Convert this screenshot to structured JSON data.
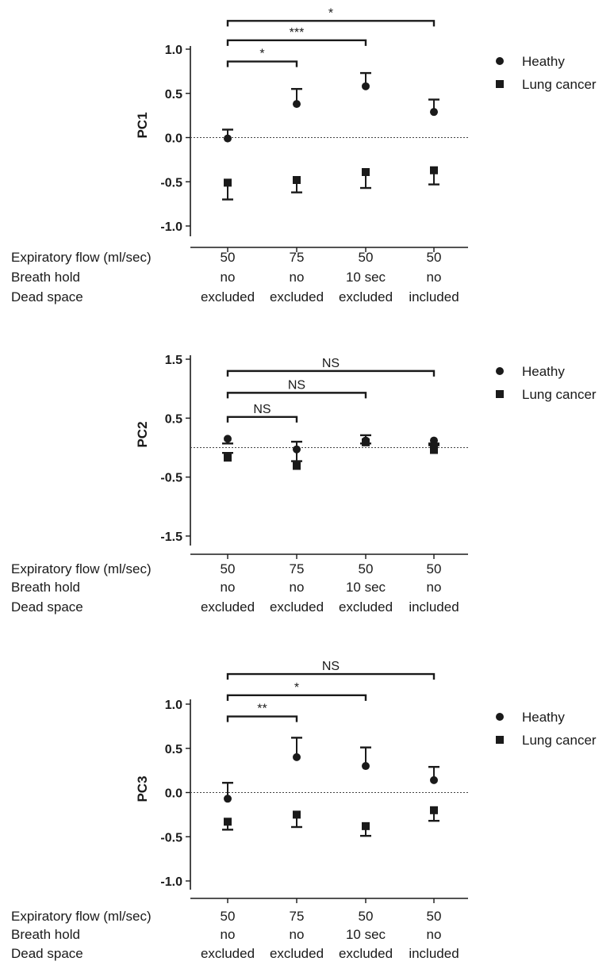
{
  "chart_data": [
    {
      "type": "scatter",
      "ylabel": "PC1",
      "ylim": [
        -1.0,
        1.0
      ],
      "yticks": [
        "1.0",
        "0.5",
        "0.0",
        "-0.5",
        "-1.0"
      ],
      "ytick_values": [
        1.0,
        0.5,
        0.0,
        -0.5,
        -1.0
      ],
      "zero_line": true,
      "grid": false,
      "legend_placement": "right",
      "row_labels": [
        "Expiratory flow (ml/sec)",
        "Breath hold",
        "Dead space"
      ],
      "conditions": [
        {
          "flow": "50",
          "hold": "no",
          "dead": "excluded"
        },
        {
          "flow": "75",
          "hold": "no",
          "dead": "excluded"
        },
        {
          "flow": "50",
          "hold": "10 sec",
          "dead": "excluded"
        },
        {
          "flow": "50",
          "hold": "no",
          "dead": "included"
        }
      ],
      "series": [
        {
          "name": "Heathy",
          "marker": "circle",
          "err_dir": "up",
          "values": [
            -0.01,
            0.38,
            0.58,
            0.29
          ],
          "err": [
            0.1,
            0.17,
            0.15,
            0.14
          ]
        },
        {
          "name": "Lung cancer",
          "marker": "square",
          "err_dir": "down",
          "values": [
            -0.51,
            -0.48,
            -0.39,
            -0.37
          ],
          "err": [
            0.19,
            0.14,
            0.18,
            0.16
          ]
        }
      ],
      "brackets": [
        {
          "from": 0,
          "to": 1,
          "label": "*",
          "y": 0.86
        },
        {
          "from": 0,
          "to": 2,
          "label": "***",
          "y": 1.1
        },
        {
          "from": 0,
          "to": 3,
          "label": "*",
          "y": 1.32
        }
      ]
    },
    {
      "type": "scatter",
      "ylabel": "PC2",
      "ylim": [
        -1.5,
        1.5
      ],
      "yticks": [
        "1.5",
        "0.5",
        "-0.5",
        "-1.5"
      ],
      "ytick_values": [
        1.5,
        0.5,
        -0.5,
        -1.5
      ],
      "zero_line": true,
      "grid": false,
      "legend_placement": "right",
      "row_labels": [
        "Expiratory flow (ml/sec)",
        "Breath hold",
        "Dead space"
      ],
      "conditions": [
        {
          "flow": "50",
          "hold": "no",
          "dead": "excluded"
        },
        {
          "flow": "75",
          "hold": "no",
          "dead": "excluded"
        },
        {
          "flow": "50",
          "hold": "10 sec",
          "dead": "excluded"
        },
        {
          "flow": "50",
          "hold": "no",
          "dead": "included"
        }
      ],
      "series": [
        {
          "name": "Heathy",
          "marker": "circle",
          "err_dir": "down",
          "values": [
            0.15,
            -0.03,
            0.12,
            0.12
          ],
          "err": [
            0.08,
            0.2,
            0.05,
            0.05
          ]
        },
        {
          "name": "Lung cancer",
          "marker": "square",
          "err_dir": "up",
          "values": [
            -0.17,
            -0.31,
            0.09,
            -0.04
          ],
          "err": [
            0.08,
            0.41,
            0.12,
            0.08
          ]
        }
      ],
      "brackets": [
        {
          "from": 0,
          "to": 1,
          "label": "NS",
          "y": 0.52
        },
        {
          "from": 0,
          "to": 2,
          "label": "NS",
          "y": 0.93
        },
        {
          "from": 0,
          "to": 3,
          "label": "NS",
          "y": 1.3
        }
      ]
    },
    {
      "type": "scatter",
      "ylabel": "PC3",
      "ylim": [
        -1.0,
        1.0
      ],
      "yticks": [
        "1.0",
        "0.5",
        "0.0",
        "-0.5",
        "-1.0"
      ],
      "ytick_values": [
        1.0,
        0.5,
        0.0,
        -0.5,
        -1.0
      ],
      "zero_line": true,
      "grid": false,
      "legend_placement": "right",
      "row_labels": [
        "Expiratory flow (ml/sec)",
        "Breath hold",
        "Dead space"
      ],
      "conditions": [
        {
          "flow": "50",
          "hold": "no",
          "dead": "excluded"
        },
        {
          "flow": "75",
          "hold": "no",
          "dead": "excluded"
        },
        {
          "flow": "50",
          "hold": "10 sec",
          "dead": "excluded"
        },
        {
          "flow": "50",
          "hold": "no",
          "dead": "included"
        }
      ],
      "series": [
        {
          "name": "Heathy",
          "marker": "circle",
          "err_dir": "up",
          "values": [
            -0.07,
            0.4,
            0.3,
            0.14
          ],
          "err": [
            0.18,
            0.22,
            0.21,
            0.15
          ]
        },
        {
          "name": "Lung cancer",
          "marker": "square",
          "err_dir": "down",
          "values": [
            -0.33,
            -0.25,
            -0.38,
            -0.2
          ],
          "err": [
            0.09,
            0.14,
            0.11,
            0.12
          ]
        }
      ],
      "brackets": [
        {
          "from": 0,
          "to": 1,
          "label": "**",
          "y": 0.86
        },
        {
          "from": 0,
          "to": 2,
          "label": "*",
          "y": 1.1
        },
        {
          "from": 0,
          "to": 3,
          "label": "NS",
          "y": 1.34
        }
      ]
    }
  ]
}
